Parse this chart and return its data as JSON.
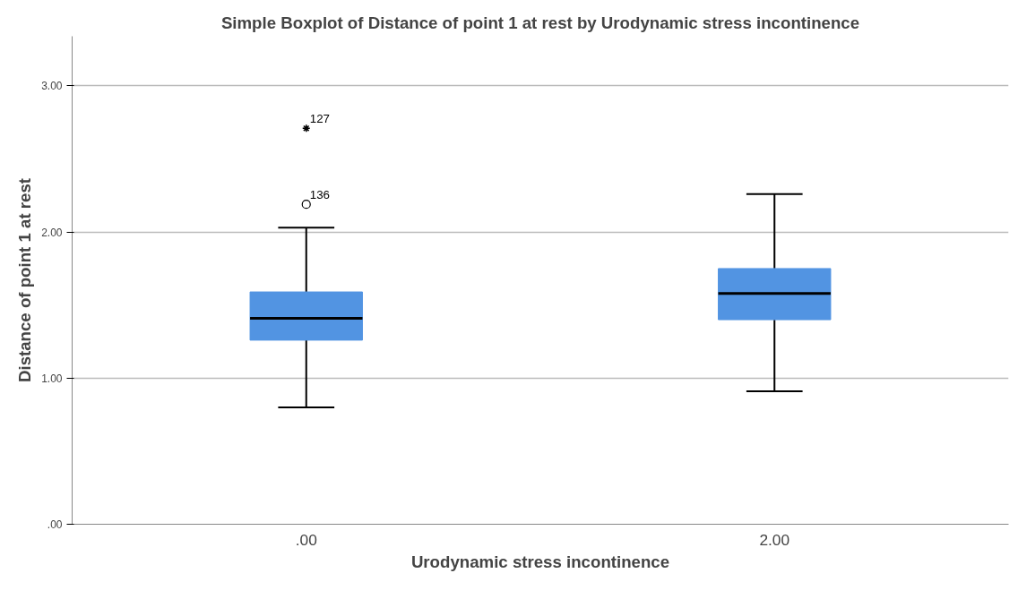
{
  "chart_data": {
    "type": "box",
    "title": "Simple Boxplot of Distance of point 1 at rest by Urodynamic stress incontinence",
    "xlabel": "Urodynamic stress incontinence",
    "ylabel": "Distance of point 1 at rest",
    "categories": [
      ".00",
      "2.00"
    ],
    "series": [
      {
        "color": "#5294e2",
        "boxes": [
          {
            "low": 0.8,
            "q1": 1.26,
            "median": 1.41,
            "q3": 1.59,
            "high": 2.03,
            "outliers": [
              2.19,
              2.71
            ]
          },
          {
            "low": 0.91,
            "q1": 1.4,
            "median": 1.58,
            "q3": 1.75,
            "high": 2.26
          }
        ]
      }
    ],
    "ylim": [
      0,
      3.34
    ],
    "yticks": [
      {
        "value": 0,
        "label": ".00"
      },
      {
        "value": 1,
        "label": "1.00"
      },
      {
        "value": 2,
        "label": "2.00"
      },
      {
        "value": 3,
        "label": "3.00"
      }
    ],
    "grid": "y",
    "annotations": [
      "136",
      "127"
    ]
  }
}
